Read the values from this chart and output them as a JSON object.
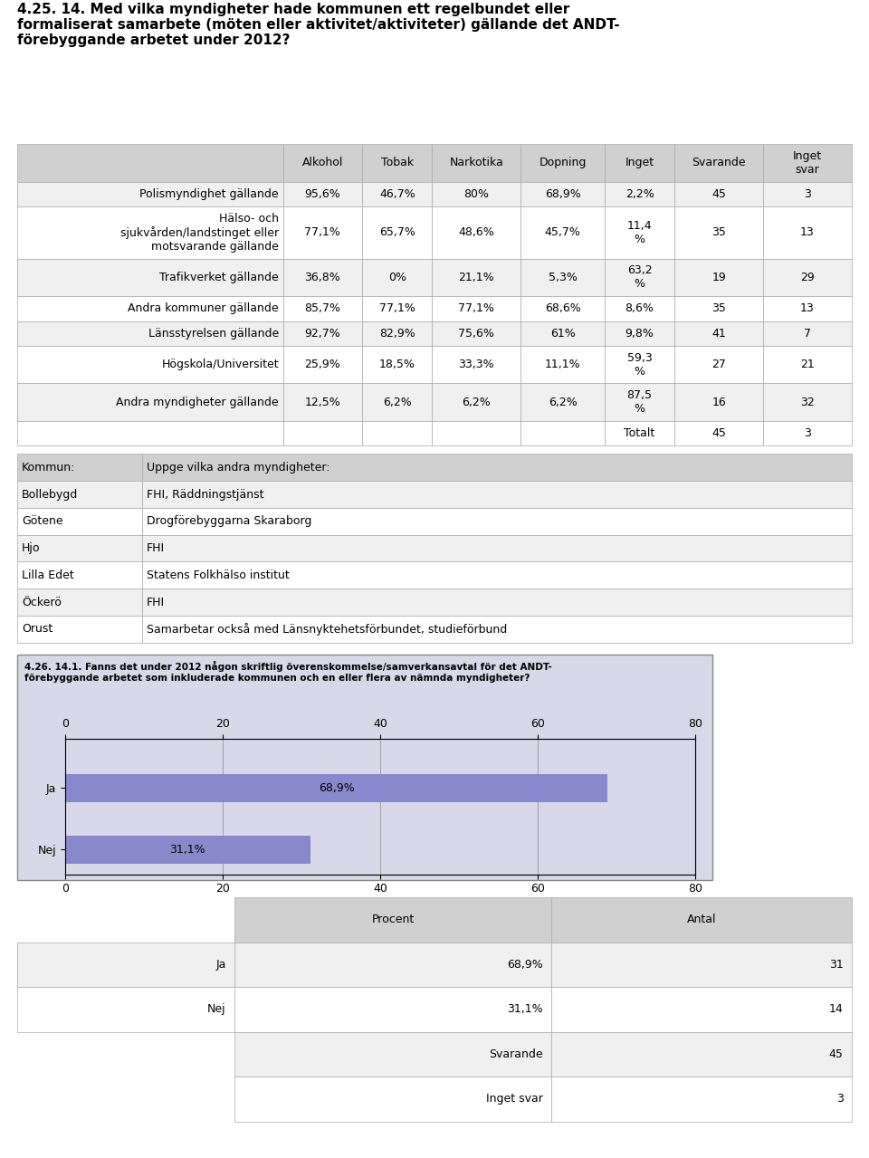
{
  "title": "4.25. 14. Med vilka myndigheter hade kommunen ett regelbundet eller\nformaliserat samarbete (möten eller aktivitet/aktiviteter) gällande det ANDT-\nförebyggande arbetet under 2012?",
  "table1_headers": [
    "Alkohol",
    "Tobak",
    "Narkotika",
    "Dopning",
    "Inget",
    "Svarande",
    "Inget\nsvar"
  ],
  "table1_rows": [
    {
      "label": "Polismyndighet gällande",
      "values": [
        "95,6%",
        "46,7%",
        "80%",
        "68,9%",
        "2,2%",
        "45",
        "3"
      ]
    },
    {
      "label": "Hälso- och\nsjukvården/landstinget eller\nmotsvarande gällande",
      "values": [
        "77,1%",
        "65,7%",
        "48,6%",
        "45,7%",
        "11,4\n%",
        "35",
        "13"
      ]
    },
    {
      "label": "Trafikverket gällande",
      "values": [
        "36,8%",
        "0%",
        "21,1%",
        "5,3%",
        "63,2\n%",
        "19",
        "29"
      ]
    },
    {
      "label": "Andra kommuner gällande",
      "values": [
        "85,7%",
        "77,1%",
        "77,1%",
        "68,6%",
        "8,6%",
        "35",
        "13"
      ]
    },
    {
      "label": "Länsstyrelsen gällande",
      "values": [
        "92,7%",
        "82,9%",
        "75,6%",
        "61%",
        "9,8%",
        "41",
        "7"
      ]
    },
    {
      "label": "Högskola/Universitet",
      "values": [
        "25,9%",
        "18,5%",
        "33,3%",
        "11,1%",
        "59,3\n%",
        "27",
        "21"
      ]
    },
    {
      "label": "Andra myndigheter gällande",
      "values": [
        "12,5%",
        "6,2%",
        "6,2%",
        "6,2%",
        "87,5\n%",
        "16",
        "32"
      ]
    }
  ],
  "table2_headers": [
    "Kommun:",
    "Uppge vilka andra myndigheter:"
  ],
  "table2_rows": [
    [
      "Bollebygd",
      "FHI, Räddningstjänst"
    ],
    [
      "Götene",
      "Drogförebyggarna Skaraborg"
    ],
    [
      "Hjo",
      "FHI"
    ],
    [
      "Lilla Edet",
      "Statens Folkhälso institut"
    ],
    [
      "Öckerö",
      "FHI"
    ],
    [
      "Orust",
      "Samarbetar också med Länsnyktehetsförbundet, studieförbund"
    ]
  ],
  "chart_title": "4.26. 14.1. Fanns det under 2012 någon skriftlig överenskommelse/samverkansavtal för det ANDT-\nförebyggande arbetet som inkluderade kommunen och en eller flera av nämnda myndigheter?",
  "chart_categories": [
    "Ja",
    "Nej"
  ],
  "chart_values": [
    68.9,
    31.1
  ],
  "chart_labels": [
    "68,9%",
    "31,1%"
  ],
  "chart_xlim": [
    0,
    80
  ],
  "chart_xticks": [
    0,
    20,
    40,
    60,
    80
  ],
  "chart_bar_color": "#8888cc",
  "chart_bg_color": "#d8d8e8",
  "chart_border_color": "#888888",
  "table3_rows": [
    [
      "Ja",
      "68,9%",
      "31"
    ],
    [
      "Nej",
      "31,1%",
      "14"
    ],
    [
      "",
      "Svarande",
      "45"
    ],
    [
      "",
      "Inget svar",
      "3"
    ]
  ],
  "bg_color": "#ffffff",
  "header_bg": "#d0d0d0",
  "row_bg_even": "#f0f0f0",
  "row_bg_odd": "#ffffff",
  "border_color": "#aaaaaa",
  "font_size": 9,
  "title_font_size": 11
}
